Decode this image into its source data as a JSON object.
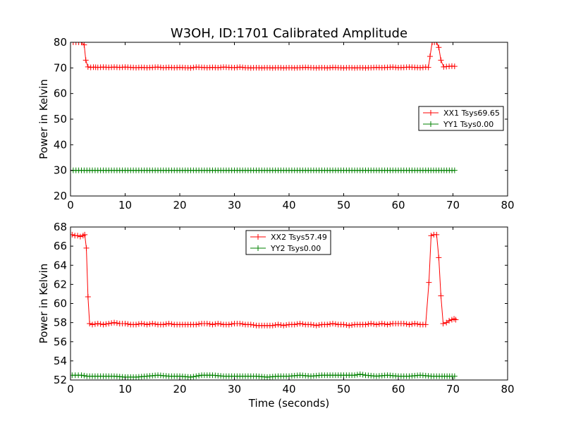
{
  "title": "W3OH, ID:1701 Calibrated Amplitude",
  "chart_data": [
    {
      "type": "line",
      "ylabel": "Power in Kelvin",
      "xlabel": "",
      "xlim": [
        0,
        80
      ],
      "ylim": [
        20,
        80
      ],
      "xticks": [
        0,
        10,
        20,
        30,
        40,
        50,
        60,
        70,
        80
      ],
      "yticks": [
        20,
        30,
        40,
        50,
        60,
        70,
        80
      ],
      "legend_position": "center-right",
      "series": [
        {
          "name": "XX1 Tsys69.65",
          "color": "#ff0000",
          "points": [
            [
              0,
              80
            ],
            [
              0.5,
              80
            ],
            [
              1.0,
              80
            ],
            [
              1.5,
              80
            ],
            [
              2.0,
              80
            ],
            [
              2.5,
              79
            ],
            [
              2.8,
              73
            ],
            [
              3.2,
              70.4
            ],
            [
              3.7,
              70.2
            ],
            [
              4.2,
              70.3
            ],
            [
              5,
              70.2
            ],
            [
              6,
              70.3
            ],
            [
              7,
              70.2
            ],
            [
              8,
              70.3
            ],
            [
              9,
              70.2
            ],
            [
              10,
              70.3
            ],
            [
              11,
              70.2
            ],
            [
              12,
              70.1
            ],
            [
              13,
              70.2
            ],
            [
              14,
              70.1
            ],
            [
              15,
              70.2
            ],
            [
              16,
              70.3
            ],
            [
              17,
              70.1
            ],
            [
              18,
              70.2
            ],
            [
              19,
              70.1
            ],
            [
              20,
              70.2
            ],
            [
              21,
              70.1
            ],
            [
              22,
              70.0
            ],
            [
              23,
              70.3
            ],
            [
              24,
              70.2
            ],
            [
              25,
              70.1
            ],
            [
              26,
              70.2
            ],
            [
              27,
              70.1
            ],
            [
              28,
              70.3
            ],
            [
              29,
              70.2
            ],
            [
              30,
              70.1
            ],
            [
              31,
              70.3
            ],
            [
              32,
              70.1
            ],
            [
              33,
              70.0
            ],
            [
              34,
              70.1
            ],
            [
              35,
              70.0
            ],
            [
              36,
              70.1
            ],
            [
              37,
              70.0
            ],
            [
              38,
              70.1
            ],
            [
              39,
              70.0
            ],
            [
              40,
              70.1
            ],
            [
              41,
              70.0
            ],
            [
              42,
              70.1
            ],
            [
              43,
              70.2
            ],
            [
              44,
              70.1
            ],
            [
              45,
              70.0
            ],
            [
              46,
              70.1
            ],
            [
              47,
              70.0
            ],
            [
              48,
              70.2
            ],
            [
              49,
              70.1
            ],
            [
              50,
              70.0
            ],
            [
              51,
              70.1
            ],
            [
              52,
              70.0
            ],
            [
              53,
              70.1
            ],
            [
              54,
              70.0
            ],
            [
              55,
              70.1
            ],
            [
              56,
              70.2
            ],
            [
              57,
              70.1
            ],
            [
              58,
              70.2
            ],
            [
              59,
              70.3
            ],
            [
              60,
              70.1
            ],
            [
              61,
              70.2
            ],
            [
              62,
              70.3
            ],
            [
              63,
              70.2
            ],
            [
              64,
              70.1
            ],
            [
              65,
              70.3
            ],
            [
              65.5,
              70.2
            ],
            [
              65.8,
              74.5
            ],
            [
              66.2,
              80
            ],
            [
              66.6,
              80
            ],
            [
              67.0,
              80
            ],
            [
              67.4,
              78
            ],
            [
              67.8,
              73
            ],
            [
              68.3,
              70.4
            ],
            [
              68.8,
              70.5
            ],
            [
              69.3,
              70.6
            ],
            [
              69.8,
              70.7
            ],
            [
              70.3,
              70.6
            ]
          ]
        },
        {
          "name": "YY1 Tsys0.00",
          "color": "#008000",
          "points": [
            [
              0,
              30
            ],
            [
              5,
              30
            ],
            [
              10,
              30
            ],
            [
              15,
              30
            ],
            [
              20,
              30
            ],
            [
              25,
              30
            ],
            [
              30,
              30
            ],
            [
              35,
              30
            ],
            [
              40,
              30
            ],
            [
              45,
              30
            ],
            [
              50,
              30
            ],
            [
              55,
              30
            ],
            [
              60,
              30
            ],
            [
              65,
              30
            ],
            [
              70.3,
              30
            ]
          ]
        }
      ]
    },
    {
      "type": "line",
      "ylabel": "Power in Kelvin",
      "xlabel": "Time (seconds)",
      "xlim": [
        0,
        80
      ],
      "ylim": [
        52,
        68
      ],
      "xticks": [
        0,
        10,
        20,
        30,
        40,
        50,
        60,
        70,
        80
      ],
      "yticks": [
        52,
        54,
        56,
        58,
        60,
        62,
        64,
        66,
        68
      ],
      "legend_position": "upper-center",
      "series": [
        {
          "name": "XX2 Tsys57.49",
          "color": "#ff0000",
          "points": [
            [
              0.3,
              67.2
            ],
            [
              0.8,
              67.1
            ],
            [
              1.3,
              67.1
            ],
            [
              1.8,
              67.0
            ],
            [
              2.3,
              67.1
            ],
            [
              2.6,
              67.2
            ],
            [
              2.9,
              65.8
            ],
            [
              3.2,
              60.7
            ],
            [
              3.5,
              57.9
            ],
            [
              4,
              57.8
            ],
            [
              5,
              57.9
            ],
            [
              6,
              57.8
            ],
            [
              7,
              57.9
            ],
            [
              8,
              58.0
            ],
            [
              9,
              57.9
            ],
            [
              10,
              57.9
            ],
            [
              11,
              57.8
            ],
            [
              12,
              57.8
            ],
            [
              13,
              57.9
            ],
            [
              14,
              57.8
            ],
            [
              15,
              57.9
            ],
            [
              16,
              57.8
            ],
            [
              17,
              57.8
            ],
            [
              18,
              57.9
            ],
            [
              19,
              57.8
            ],
            [
              20,
              57.8
            ],
            [
              21,
              57.8
            ],
            [
              22,
              57.8
            ],
            [
              23,
              57.8
            ],
            [
              24,
              57.9
            ],
            [
              25,
              57.9
            ],
            [
              26,
              57.8
            ],
            [
              27,
              57.9
            ],
            [
              28,
              57.8
            ],
            [
              29,
              57.8
            ],
            [
              30,
              57.9
            ],
            [
              31,
              57.9
            ],
            [
              32,
              57.8
            ],
            [
              33,
              57.8
            ],
            [
              34,
              57.7
            ],
            [
              35,
              57.7
            ],
            [
              36,
              57.7
            ],
            [
              37,
              57.7
            ],
            [
              38,
              57.8
            ],
            [
              39,
              57.7
            ],
            [
              40,
              57.8
            ],
            [
              41,
              57.8
            ],
            [
              42,
              57.9
            ],
            [
              43,
              57.8
            ],
            [
              44,
              57.8
            ],
            [
              45,
              57.7
            ],
            [
              46,
              57.8
            ],
            [
              47,
              57.8
            ],
            [
              48,
              57.9
            ],
            [
              49,
              57.8
            ],
            [
              50,
              57.8
            ],
            [
              51,
              57.7
            ],
            [
              52,
              57.8
            ],
            [
              53,
              57.8
            ],
            [
              54,
              57.8
            ],
            [
              55,
              57.9
            ],
            [
              56,
              57.8
            ],
            [
              57,
              57.9
            ],
            [
              58,
              57.8
            ],
            [
              59,
              57.9
            ],
            [
              60,
              57.9
            ],
            [
              61,
              57.9
            ],
            [
              62,
              57.8
            ],
            [
              63,
              57.9
            ],
            [
              64,
              57.8
            ],
            [
              65,
              57.8
            ],
            [
              65.6,
              62.2
            ],
            [
              66.0,
              67.1
            ],
            [
              66.5,
              67.2
            ],
            [
              67.0,
              67.2
            ],
            [
              67.4,
              64.8
            ],
            [
              67.8,
              60.8
            ],
            [
              68.2,
              57.9
            ],
            [
              68.8,
              58.0
            ],
            [
              69.3,
              58.2
            ],
            [
              69.8,
              58.3
            ],
            [
              70.2,
              58.4
            ],
            [
              70.5,
              58.3
            ]
          ]
        },
        {
          "name": "YY2 Tsys0.00",
          "color": "#008000",
          "points": [
            [
              0.3,
              52.5
            ],
            [
              2,
              52.5
            ],
            [
              3,
              52.4
            ],
            [
              5,
              52.4
            ],
            [
              8,
              52.4
            ],
            [
              10,
              52.3
            ],
            [
              12,
              52.3
            ],
            [
              14,
              52.4
            ],
            [
              16,
              52.5
            ],
            [
              18,
              52.4
            ],
            [
              20,
              52.4
            ],
            [
              22,
              52.3
            ],
            [
              24,
              52.5
            ],
            [
              26,
              52.5
            ],
            [
              28,
              52.4
            ],
            [
              30,
              52.4
            ],
            [
              32,
              52.4
            ],
            [
              34,
              52.4
            ],
            [
              36,
              52.3
            ],
            [
              38,
              52.4
            ],
            [
              40,
              52.4
            ],
            [
              42,
              52.5
            ],
            [
              44,
              52.4
            ],
            [
              46,
              52.5
            ],
            [
              48,
              52.5
            ],
            [
              50,
              52.5
            ],
            [
              52,
              52.5
            ],
            [
              53,
              52.6
            ],
            [
              54,
              52.5
            ],
            [
              56,
              52.4
            ],
            [
              58,
              52.5
            ],
            [
              60,
              52.4
            ],
            [
              62,
              52.4
            ],
            [
              64,
              52.5
            ],
            [
              66,
              52.4
            ],
            [
              68,
              52.4
            ],
            [
              70.3,
              52.4
            ]
          ]
        }
      ]
    }
  ]
}
